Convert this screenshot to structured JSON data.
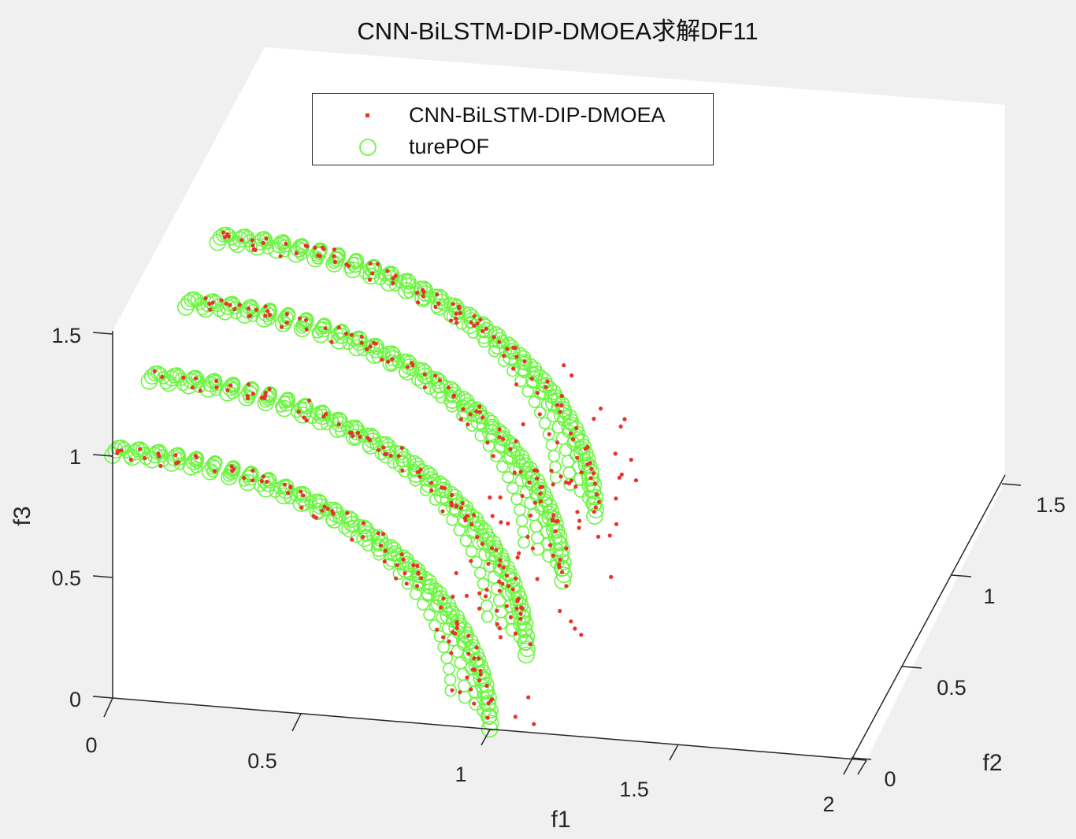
{
  "title": "CNN-BiLSTM-DIP-DMOEA求解DF11",
  "legend": {
    "items": [
      {
        "label": "CNN-BiLSTM-DIP-DMOEA",
        "marker": "dot",
        "color": "#e8332a"
      },
      {
        "label": "turePOF",
        "marker": "circle",
        "color": "#6cf542"
      }
    ]
  },
  "axes": {
    "f1": {
      "label": "f1",
      "ticks": [
        "0",
        "0.5",
        "1",
        "1.5",
        "2"
      ]
    },
    "f2": {
      "label": "f2",
      "ticks": [
        "0",
        "0.5",
        "1",
        "1.5"
      ]
    },
    "f3": {
      "label": "f3",
      "ticks": [
        "0",
        "0.5",
        "1",
        "1.5"
      ]
    }
  },
  "colors": {
    "background": "#f0f0f0",
    "pane": "#ffffff",
    "axis": "#262626",
    "pof": "#6cf542",
    "algo": "#e8332a"
  },
  "chart_data": {
    "type": "scatter",
    "dimensions": 3,
    "title": "CNN-BiLSTM-DIP-DMOEA求解DF11",
    "xlabel": "f1",
    "ylabel": "f2",
    "zlabel": "f3",
    "xlim": [
      0,
      2
    ],
    "ylim": [
      0,
      1.5
    ],
    "zlim": [
      0,
      1.5
    ],
    "xticks": [
      0,
      0.5,
      1,
      1.5,
      2
    ],
    "yticks": [
      0,
      0.5,
      1,
      1.5
    ],
    "zticks": [
      0,
      0.5,
      1,
      1.5
    ],
    "grid": false,
    "legend_position": "top-left inside",
    "series": [
      {
        "name": "CNN-BiLSTM-DIP-DMOEA",
        "marker": "filled dot",
        "color": "#e8332a",
        "description": "Approximated front points scattered on and around four concentric spherical-quadrant fronts, with some outliers beyond the outer edges"
      },
      {
        "name": "turePOF",
        "marker": "open circle",
        "color": "#6cf542",
        "description": "True Pareto front: four spherical-quadrant arc bands (radius ~1.0 each), shifted along f2"
      }
    ],
    "fronts": [
      {
        "index": 1,
        "f2_offset": 0.0,
        "radius": 1.0
      },
      {
        "index": 2,
        "f2_offset": 0.4,
        "radius": 1.0
      },
      {
        "index": 3,
        "f2_offset": 0.8,
        "radius": 1.0
      },
      {
        "index": 4,
        "f2_offset": 1.15,
        "radius": 1.0
      }
    ]
  }
}
